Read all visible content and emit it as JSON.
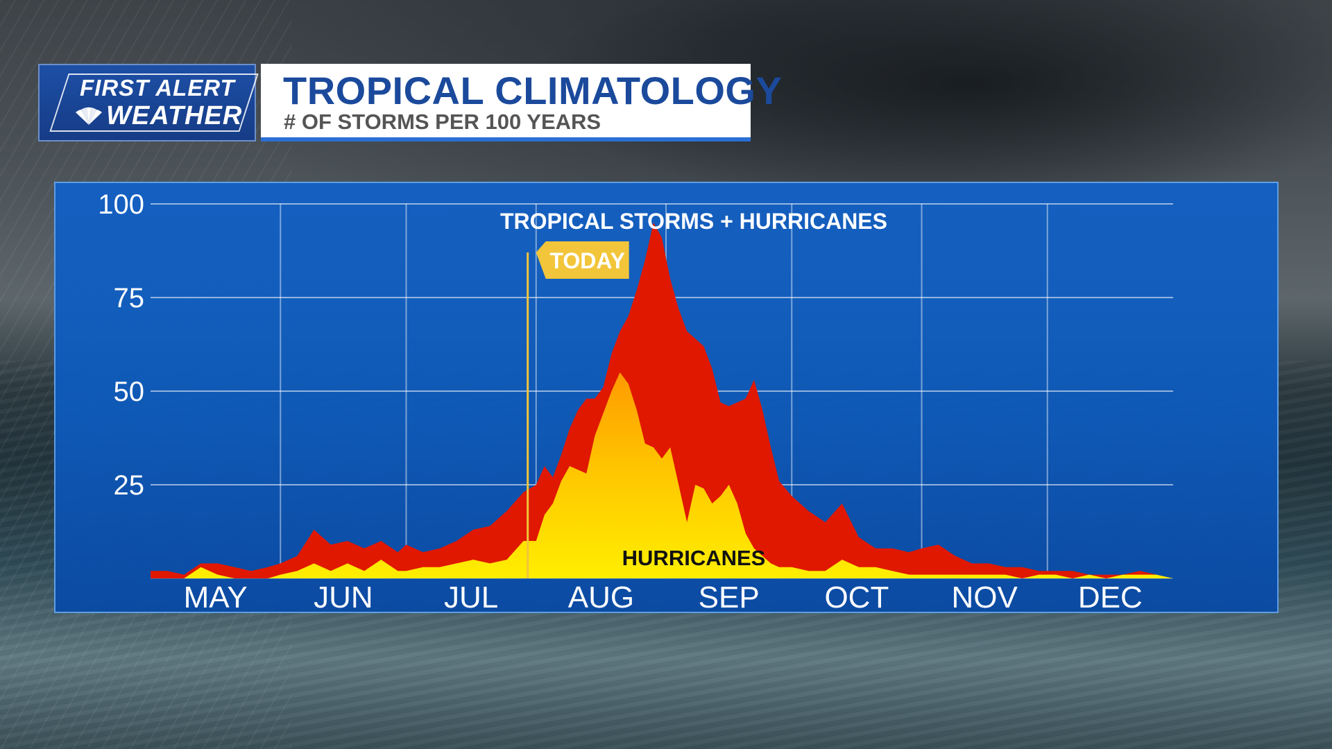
{
  "logo": {
    "line1": "FIRST ALERT",
    "line2": "WEATHER"
  },
  "header": {
    "title": "TROPICAL CLIMATOLOGY",
    "subtitle": "# OF STORMS PER 100 YEARS"
  },
  "colors": {
    "total": "#e01800",
    "hurricanes": "#ffe600",
    "hurricanes_mid": "#ff9a00",
    "panel": "#1460c4",
    "today_flag": "#f2c53a"
  },
  "chart_data": {
    "type": "area",
    "ylim": [
      0,
      100
    ],
    "yticks": [
      "100",
      "75",
      "50",
      "25"
    ],
    "ytick_values": [
      100,
      75,
      50,
      25
    ],
    "months": [
      "MAY",
      "JUN",
      "JUL",
      "AUG",
      "SEP",
      "OCT",
      "NOV",
      "DEC"
    ],
    "x_domain": [
      "May 1",
      "Dec 31"
    ],
    "x_dates_are_day_of_year_from": "May 1",
    "grid": true,
    "series": [
      {
        "name": "TROPICAL STORMS + HURRICANES",
        "x": [
          0,
          4,
          8,
          12,
          16,
          20,
          24,
          28,
          31,
          35,
          39,
          43,
          47,
          51,
          55,
          59,
          61,
          65,
          69,
          73,
          77,
          81,
          85,
          89,
          92,
          94,
          96,
          98,
          100,
          102,
          104,
          106,
          108,
          110,
          112,
          114,
          116,
          118,
          120,
          122,
          124,
          126,
          128,
          130,
          132,
          134,
          136,
          138,
          140,
          142,
          144,
          146,
          148,
          150,
          153,
          157,
          161,
          165,
          169,
          173,
          177,
          181,
          184,
          188,
          192,
          196,
          200,
          204,
          208,
          212,
          216,
          220,
          224,
          228,
          232,
          236,
          240,
          244
        ],
        "values": [
          2,
          2,
          1,
          4,
          4,
          3,
          2,
          3,
          4,
          6,
          13,
          9,
          10,
          8,
          10,
          7,
          9,
          7,
          8,
          10,
          13,
          14,
          18,
          23,
          25,
          30,
          27,
          33,
          40,
          45,
          48,
          48,
          51,
          60,
          66,
          70,
          77,
          85,
          95,
          91,
          80,
          72,
          66,
          64,
          62,
          56,
          47,
          46,
          47,
          48,
          53,
          45,
          35,
          26,
          22,
          18,
          15,
          20,
          11,
          8,
          8,
          7,
          8,
          9,
          6,
          4,
          4,
          3,
          3,
          2,
          2,
          2,
          1,
          1,
          1,
          2,
          1,
          0
        ]
      },
      {
        "name": "HURRICANES",
        "x": [
          0,
          8,
          12,
          16,
          20,
          24,
          28,
          31,
          35,
          39,
          43,
          47,
          51,
          55,
          59,
          61,
          65,
          69,
          73,
          77,
          81,
          85,
          89,
          92,
          94,
          96,
          98,
          100,
          102,
          104,
          106,
          108,
          110,
          112,
          114,
          116,
          118,
          120,
          122,
          124,
          126,
          128,
          130,
          132,
          134,
          136,
          138,
          140,
          142,
          144,
          146,
          148,
          150,
          153,
          157,
          161,
          165,
          169,
          173,
          177,
          181,
          184,
          188,
          192,
          196,
          200,
          204,
          208,
          212,
          216,
          220,
          224,
          228,
          232,
          236,
          240,
          244
        ],
        "values": [
          0,
          0,
          3,
          1,
          0,
          0,
          0,
          1,
          2,
          4,
          2,
          4,
          2,
          5,
          2,
          2,
          3,
          3,
          4,
          5,
          4,
          5,
          10,
          10,
          17,
          20,
          26,
          30,
          29,
          28,
          38,
          44,
          50,
          55,
          52,
          45,
          36,
          35,
          32,
          35,
          25,
          15,
          25,
          24,
          20,
          22,
          25,
          20,
          12,
          8,
          6,
          4,
          3,
          3,
          2,
          2,
          5,
          3,
          3,
          2,
          1,
          1,
          1,
          1,
          1,
          1,
          1,
          0,
          1,
          1,
          0,
          1,
          0,
          1,
          1,
          1,
          0
        ]
      }
    ],
    "annotations": {
      "total_label": "TROPICAL STORMS + HURRICANES",
      "hurricane_label": "HURRICANES",
      "today_label": "TODAY",
      "today_day": 90
    }
  }
}
